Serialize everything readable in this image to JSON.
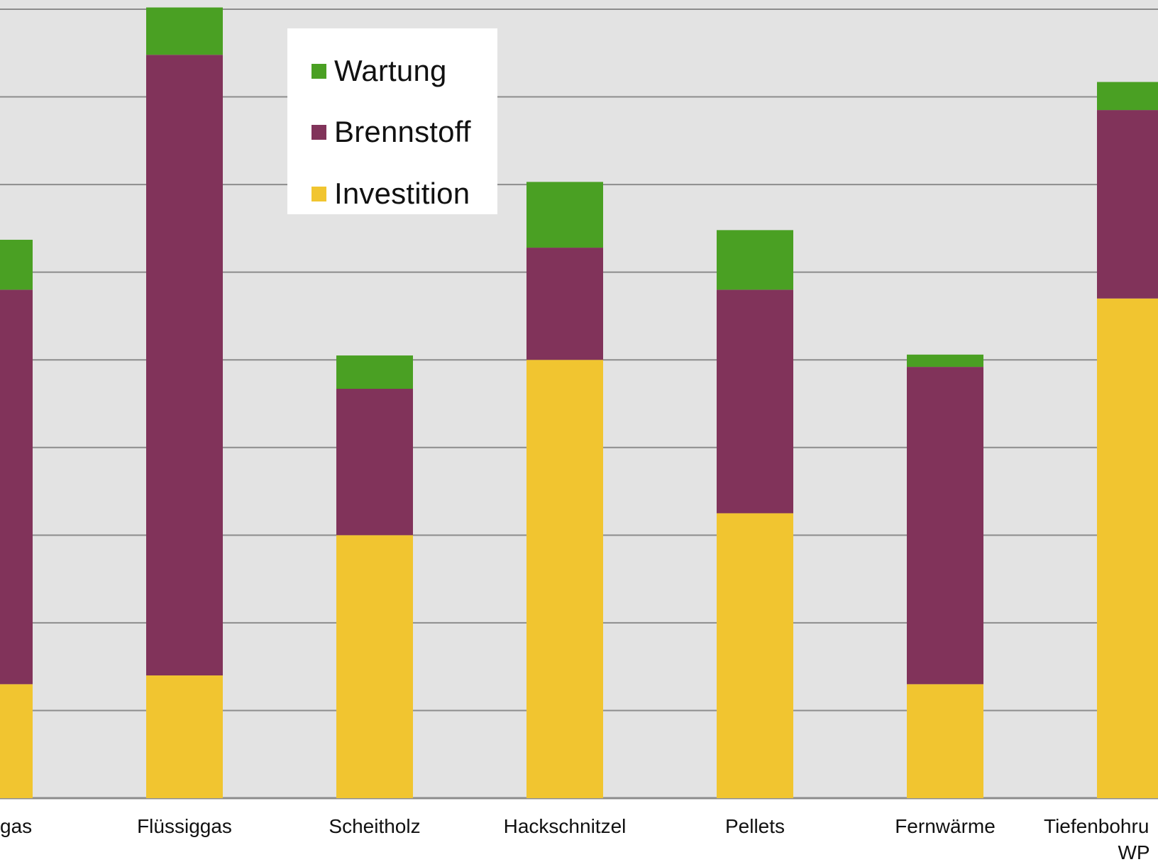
{
  "chart_data": {
    "type": "bar",
    "stacked": true,
    "categories": [
      "Erdgas",
      "Flüssiggas",
      "Scheitholz",
      "Hackschnitzel",
      "Pellets",
      "Fernwärme",
      "Tiefenbohrung WP"
    ],
    "visible_category_labels": [
      "gas",
      "Flüssiggas",
      "Scheitholz",
      "Hackschnitzel",
      "Pellets",
      "Fernwärme",
      "Tiefenbohru",
      "WP"
    ],
    "series": [
      {
        "name": "Investition",
        "color": "#F1C530",
        "values": [
          1.3,
          1.4,
          3.0,
          5.0,
          3.25,
          1.3,
          5.7
        ]
      },
      {
        "name": "Brennstoff",
        "color": "#81335A",
        "values": [
          4.5,
          7.08,
          1.67,
          1.28,
          2.55,
          3.62,
          2.15
        ]
      },
      {
        "name": "Wartung",
        "color": "#4AA023",
        "values": [
          0.57,
          0.54,
          0.38,
          0.75,
          0.68,
          0.14,
          0.32
        ]
      }
    ],
    "legend_order": [
      "Wartung",
      "Brennstoff",
      "Investition"
    ],
    "legend_position": "top-left",
    "ylim": [
      0,
      9
    ],
    "grid": true,
    "xlabel": "",
    "ylabel": "",
    "title": "",
    "background": "#E3E3E3",
    "gridline_color": "#8C8C8C"
  }
}
